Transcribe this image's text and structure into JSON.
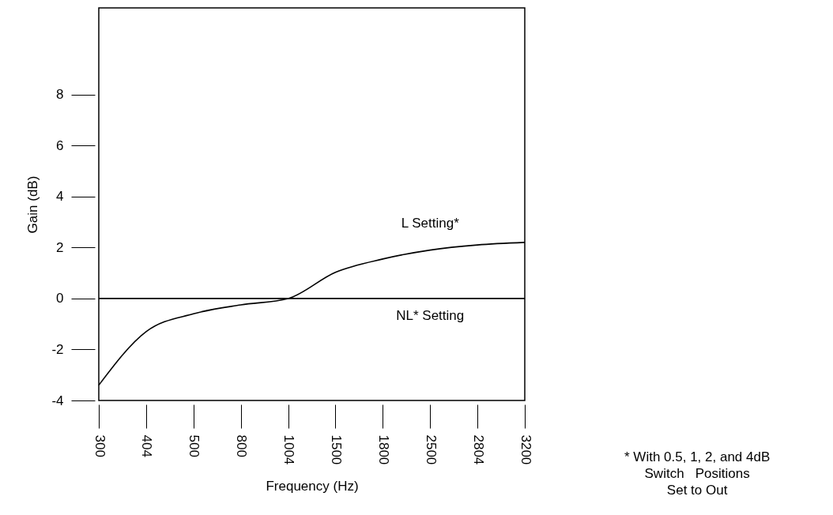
{
  "chart_data": {
    "type": "line",
    "xlabel": "Frequency (Hz)",
    "ylabel": "Gain (dB)",
    "categories": [
      "300",
      "404",
      "500",
      "800",
      "1004",
      "1500",
      "1800",
      "2500",
      "2804",
      "3200"
    ],
    "series": [
      {
        "name": "L Setting*",
        "color": "#000000",
        "values": [
          -3.4,
          -1.3,
          -0.6,
          -0.25,
          0,
          1.03,
          1.55,
          1.9,
          2.1,
          2.2
        ]
      },
      {
        "name": "NL* Setting",
        "color": "#000000",
        "values": [
          0,
          0,
          0,
          0,
          0,
          0,
          0,
          0,
          0,
          0
        ]
      }
    ],
    "ylim": [
      -4,
      11.4
    ],
    "yticks": [
      -4,
      -2,
      0,
      2,
      4,
      6,
      8
    ],
    "grid": false,
    "line_style": "solid",
    "annotations": [
      "* With 0.5, 1, 2, and 4dB\nSwitch   Positions\nSet to Out"
    ]
  }
}
